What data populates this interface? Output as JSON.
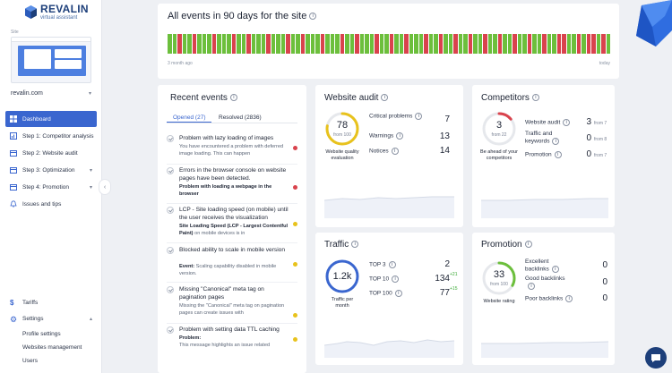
{
  "brand": {
    "title": "REVALIN",
    "subtitle": "virtual assistant"
  },
  "sidebar": {
    "site_label": "Site",
    "site_name": "revalin.com",
    "items": [
      {
        "label": "Dashboard",
        "icon": "dashboard-icon"
      },
      {
        "label": "Step 1: Competitor analysis",
        "icon": "chart-icon"
      },
      {
        "label": "Step 2: Website audit",
        "icon": "calendar-icon"
      },
      {
        "label": "Step 3: Optimization",
        "icon": "calendar-icon"
      },
      {
        "label": "Step 4: Promotion",
        "icon": "calendar-icon"
      },
      {
        "label": "Issues and tips",
        "icon": "bell-icon"
      }
    ],
    "bottom": {
      "tariffs": "Tariffs",
      "settings": "Settings",
      "sub": [
        "Profile settings",
        "Websites management",
        "Users"
      ]
    }
  },
  "events_timeline": {
    "title": "All events in 90 days for the site",
    "start_label": "3 month ago",
    "end_label": "today",
    "colors": {
      "ok": "#6cbf3c",
      "error": "#d9434d",
      "empty": "#d3d6dc"
    }
  },
  "recent_events": {
    "title": "Recent events",
    "tab_open": "Opened (27)",
    "tab_resolved": "Resolved (2836)",
    "items": [
      {
        "title": "Problem with lazy loading of images",
        "sub_bold": "",
        "sub": "You have encountered a problem with deferred image loading. This can happen",
        "status": "error"
      },
      {
        "title": "Errors in the browser console on website pages have been detected.",
        "sub_bold": "Problem with loading a webpage in the browser",
        "sub": "",
        "status": "error"
      },
      {
        "title": "LCP - Site loading speed (on mobile) until the user receives the visualization",
        "sub_bold": "Site Loading Speed (LCP - Largest Contentful Paint)",
        "sub": "on mobile devices is in",
        "status": "warning"
      },
      {
        "title": "Blocked ability to scale in mobile version",
        "sub_bold": "Event:",
        "sub": "Scaling capability disabled in mobile version.",
        "status": "warning"
      },
      {
        "title": "Missing \"Canonical\" meta tag on pagination pages",
        "sub_bold": "",
        "sub": "Missing the \"Canonical\" meta tag on pagination pages can create issues with",
        "status": "warning"
      },
      {
        "title": "Problem with setting data TTL caching",
        "sub_bold": "Problem:",
        "sub": "This message highlights an issue related",
        "status": "warning"
      }
    ],
    "status_colors": {
      "error": "#d9434d",
      "warning": "#e8c21c"
    }
  },
  "website_audit": {
    "title": "Website audit",
    "score": "78",
    "from": "from 100",
    "caption": "Website quality evaluation",
    "gauge_fraction": 0.78,
    "gauge_color": "#e8c21c",
    "metrics": [
      {
        "label": "Critical problems",
        "value": "7"
      },
      {
        "label": "Warnings",
        "value": "13"
      },
      {
        "label": "Notices",
        "value": "14"
      }
    ]
  },
  "competitors": {
    "title": "Competitors",
    "score": "3",
    "from": "from 22",
    "caption": "Be ahead of your competitors",
    "gauge_fraction": 0.14,
    "gauge_color": "#d9434d",
    "metrics": [
      {
        "label": "Website audit",
        "value": "3",
        "from": "from 7"
      },
      {
        "label": "Traffic and keywords",
        "value": "0",
        "from": "from 8"
      },
      {
        "label": "Promotion",
        "value": "0",
        "from": "from 7"
      }
    ]
  },
  "traffic": {
    "title": "Traffic",
    "score": "1.2k",
    "caption": "Traffic per month",
    "gauge_color": "#3a66cf",
    "metrics": [
      {
        "label": "TOP 3",
        "value": "2",
        "delta": ""
      },
      {
        "label": "TOP 10",
        "value": "134",
        "delta": "+21"
      },
      {
        "label": "TOP 100",
        "value": "77",
        "delta": "+15"
      }
    ]
  },
  "promotion": {
    "title": "Promotion",
    "score": "33",
    "from": "from 100",
    "caption": "Website rating",
    "gauge_fraction": 0.33,
    "gauge_color": "#6cbf3c",
    "metrics": [
      {
        "label": "Excellent backlinks",
        "value": "0"
      },
      {
        "label": "Good backlinks",
        "value": "0"
      },
      {
        "label": "Poor backlinks",
        "value": "0"
      }
    ]
  }
}
